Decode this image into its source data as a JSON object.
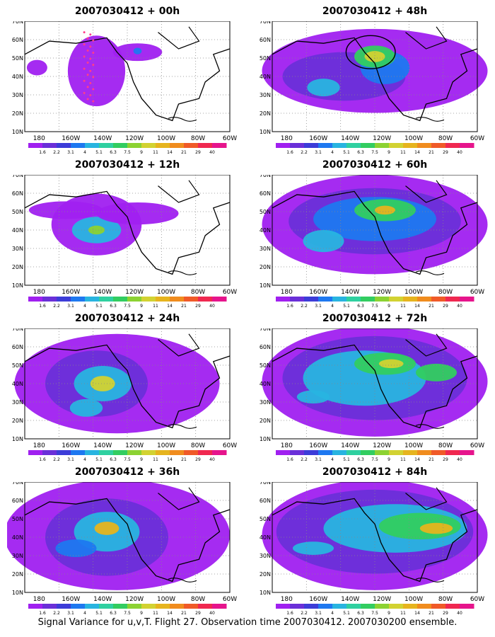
{
  "caption": "Signal Variance for u,v,T. Flight 27. Observation time 2007030412. 2007030200 ensemble.",
  "colorbar": {
    "labels": [
      "1.6",
      "2.2",
      "3.1",
      "4",
      "5.1",
      "6.3",
      "7.5",
      "9",
      "11",
      "14",
      "21",
      "29",
      "40"
    ],
    "colors": [
      "#a020f0",
      "#6a2fd8",
      "#3c3cd8",
      "#1e78f0",
      "#28b4e0",
      "#2fd0a0",
      "#32cd60",
      "#8cd232",
      "#d2d232",
      "#e6b41e",
      "#f08c1e",
      "#f05a28",
      "#f02850",
      "#e6148c"
    ]
  },
  "axes": {
    "lon_labels": [
      "180",
      "160W",
      "140W",
      "120W",
      "100W",
      "80W",
      "60W"
    ],
    "lat_labels": [
      "70N",
      "60N",
      "50N",
      "40N",
      "30N",
      "20N",
      "10N"
    ]
  },
  "panels": [
    {
      "title": "2007030412 + 00h",
      "flight_track": true,
      "target_circle": false
    },
    {
      "title": "2007030412 + 48h",
      "flight_track": false,
      "target_circle": true
    },
    {
      "title": "2007030412 + 12h",
      "flight_track": false,
      "target_circle": false
    },
    {
      "title": "2007030412 + 60h",
      "flight_track": false,
      "target_circle": false
    },
    {
      "title": "2007030412 + 24h",
      "flight_track": false,
      "target_circle": false
    },
    {
      "title": "2007030412 + 72h",
      "flight_track": false,
      "target_circle": false
    },
    {
      "title": "2007030412 + 36h",
      "flight_track": false,
      "target_circle": false
    },
    {
      "title": "2007030412 + 84h",
      "flight_track": false,
      "target_circle": false
    }
  ]
}
